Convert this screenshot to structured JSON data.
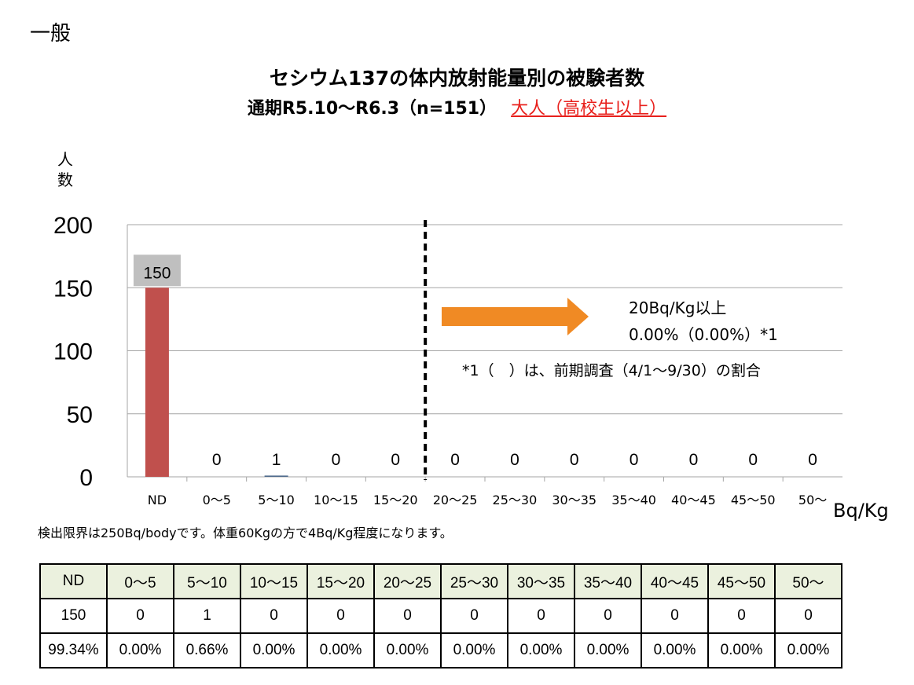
{
  "category_label": "一般",
  "title": "セシウム137の体内放射能量別の被験者数",
  "subtitle": {
    "main": "通期R5.10〜R6.3（n=151）",
    "highlight": "大人（高校生以上）"
  },
  "colors": {
    "bar_nd": "#c0504d",
    "bar_other": "#4f6b8c",
    "label_bg": "#bfbfbf",
    "arrow": "#f08a24",
    "highlight": "#e8201c",
    "grid": "#a6a6a6",
    "table_header_bg": "#ebf1de"
  },
  "chart_data": {
    "type": "bar",
    "title": "セシウム137の体内放射能量別の被験者数",
    "ylabel": "人数",
    "xlabel": "Bq/Kg",
    "ylim": [
      0,
      200
    ],
    "yticks": [
      0,
      50,
      100,
      150,
      200
    ],
    "grid": true,
    "categories": [
      "ND",
      "0〜5",
      "5〜10",
      "10〜15",
      "15〜20",
      "20〜25",
      "25〜30",
      "30〜35",
      "35〜40",
      "40〜45",
      "45〜50",
      "50〜"
    ],
    "values": [
      150,
      0,
      1,
      0,
      0,
      0,
      0,
      0,
      0,
      0,
      0,
      0
    ],
    "threshold_after_category": "15〜20",
    "annotations": [
      "20Bq/Kg以上",
      "0.00%（0.00%）*1",
      "*1（　）は、前期調査（4/1〜9/30）の割合"
    ]
  },
  "note": "検出限界は250Bq/bodyです。体重60Kgの方で4Bq/Kg程度になります。",
  "table": {
    "headers": [
      "ND",
      "0〜5",
      "5〜10",
      "10〜15",
      "15〜20",
      "20〜25",
      "25〜30",
      "30〜35",
      "35〜40",
      "40〜45",
      "45〜50",
      "50〜"
    ],
    "counts": [
      "150",
      "0",
      "1",
      "0",
      "0",
      "0",
      "0",
      "0",
      "0",
      "0",
      "0",
      "0"
    ],
    "percentages": [
      "99.34%",
      "0.00%",
      "0.66%",
      "0.00%",
      "0.00%",
      "0.00%",
      "0.00%",
      "0.00%",
      "0.00%",
      "0.00%",
      "0.00%",
      "0.00%"
    ]
  }
}
